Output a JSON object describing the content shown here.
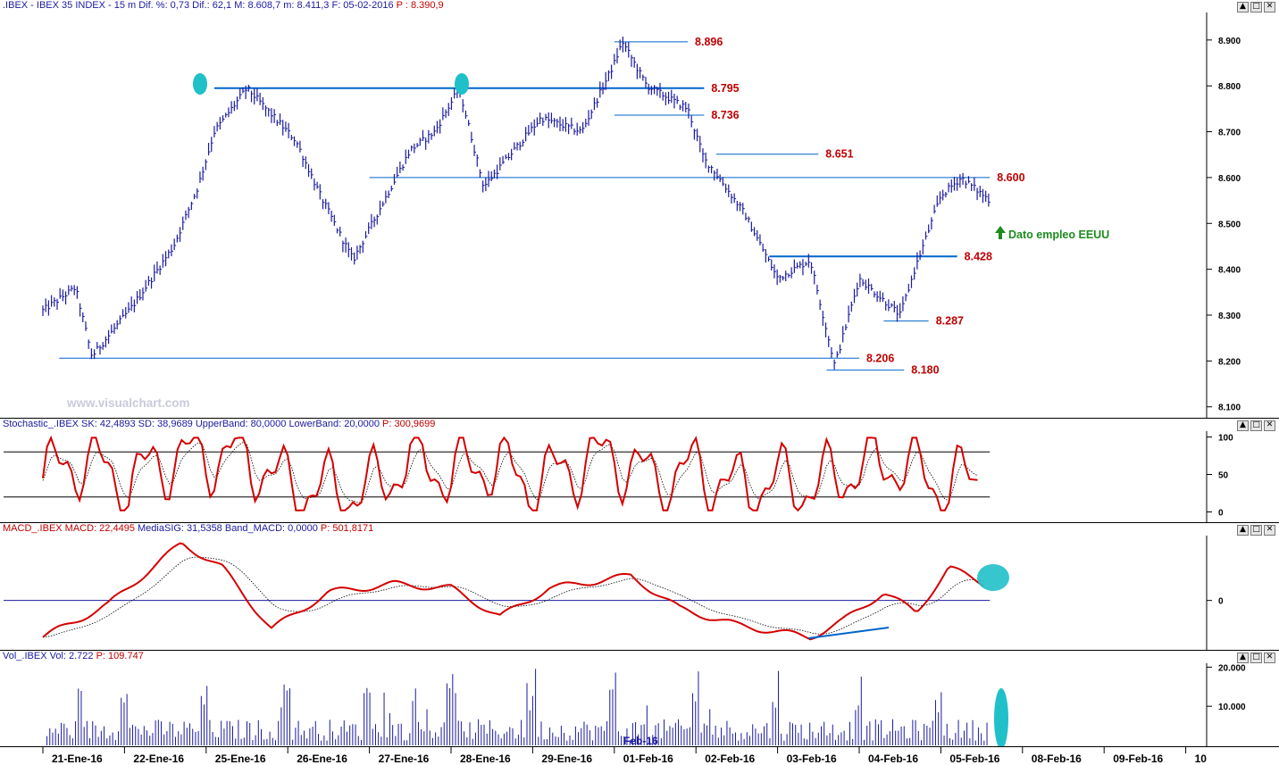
{
  "price_panel": {
    "title": {
      "symbol": ".IBEX - IBEX 35 INDEX -",
      "stats": "15 m  Dif. %: 0,73  Dif.: 62,1  M: 8.608,7  m: 8.411,3  F: 05-02-2016",
      "last": "P : 8.390,9"
    },
    "watermark": "www.visualchart.com",
    "note": "Dato empleo EEUU"
  },
  "stoch_panel": {
    "title": {
      "label": "Stochastic_.IBEX SK: 42,4893  SD: 38,9689  UpperBand: 80,0000  LowerBand: 20,0000",
      "last": "P: 300,9699"
    }
  },
  "macd_panel": {
    "title": {
      "label_main": "MACD_.IBEX MACD: 22,4495",
      "label_rest": "MediaSIG: 31,5358  Band_MACD: 0,0000",
      "last": "P: 501,8171"
    }
  },
  "vol_panel": {
    "title": {
      "label": "Vol_.IBEX Vol: 2.722",
      "last": "P: 109.747"
    },
    "inside_date": "Feb-16"
  },
  "window_buttons": [
    "▲",
    "□",
    "✕"
  ],
  "colors": {
    "price": "#1a1aa0",
    "level_line": "#0066cc",
    "level_label": "#c00000",
    "stoch": "#d40000",
    "macd": "#d40000",
    "signal": "#000000",
    "highlight": "#20c0c8",
    "volume": "#1a1aa0",
    "note": "#1f8a1f"
  },
  "chart_data": [
    {
      "type": "line",
      "name": "price",
      "ylim": [
        8080,
        8960
      ],
      "yticks": [
        8100,
        8200,
        8300,
        8400,
        8500,
        8600,
        8700,
        8800,
        8900
      ],
      "ytick_labels": [
        "8.100",
        "8.200",
        "8.300",
        "8.400",
        "8.500",
        "8.600",
        "8.700",
        "8.800",
        "8.900"
      ],
      "x_categories": [
        "21-Ene-16",
        "22-Ene-16",
        "25-Ene-16",
        "26-Ene-16",
        "27-Ene-16",
        "28-Ene-16",
        "29-Ene-16",
        "01-Feb-16",
        "02-Feb-16",
        "03-Feb-16",
        "04-Feb-16",
        "05-Feb-16",
        "08-Feb-16",
        "09-Feb-16",
        "10"
      ],
      "x_range": [
        0,
        14.5
      ],
      "series": [
        {
          "x": [
            0,
            0.4,
            0.6,
            1.1,
            1.6,
            1.9,
            2.1,
            2.5,
            3.1,
            3.4,
            3.8,
            4.5,
            4.8,
            5.1,
            5.4,
            6.1,
            6.6,
            7.0,
            7.1,
            7.4,
            7.9,
            8.1,
            8.2,
            8.6,
            9.0,
            9.4,
            9.7,
            10.0,
            10.5,
            10.7,
            11.0,
            11.25,
            11.6
          ],
          "y": [
            8310,
            8360,
            8210,
            8320,
            8450,
            8580,
            8700,
            8795,
            8680,
            8560,
            8420,
            8660,
            8700,
            8795,
            8580,
            8730,
            8700,
            8850,
            8896,
            8800,
            8750,
            8640,
            8620,
            8520,
            8380,
            8420,
            8190,
            8380,
            8300,
            8410,
            8560,
            8600,
            8550
          ]
        }
      ],
      "levels": [
        {
          "value": 8896,
          "label": "8.896",
          "x_from": 7.0,
          "x_to": 7.9
        },
        {
          "value": 8795,
          "label": "8.795",
          "x_from": 2.1,
          "x_to": 8.1
        },
        {
          "value": 8736,
          "label": "8.736",
          "x_from": 7.0,
          "x_to": 8.1
        },
        {
          "value": 8651,
          "label": "8.651",
          "x_from": 8.25,
          "x_to": 9.5
        },
        {
          "value": 8600,
          "label": "8.600",
          "x_from": 4.0,
          "x_to": 11.6
        },
        {
          "value": 8428,
          "label": "8.428",
          "x_from": 8.9,
          "x_to": 11.2
        },
        {
          "value": 8287,
          "label": "8.287",
          "x_from": 10.3,
          "x_to": 10.85
        },
        {
          "value": 8206,
          "label": "8.206",
          "x_from": 0.2,
          "x_to": 10.0
        },
        {
          "value": 8180,
          "label": "8.180",
          "x_from": 9.6,
          "x_to": 10.55
        }
      ]
    },
    {
      "type": "line",
      "name": "stochastic",
      "ylim": [
        -3,
        103
      ],
      "yticks": [
        0,
        50,
        100
      ],
      "ytick_labels": [
        "0",
        "50",
        "100"
      ],
      "bands": [
        80,
        20
      ],
      "series": [
        {
          "x": [
            0,
            0.5,
            1.0,
            1.5,
            2.0,
            2.5,
            3.0,
            3.5,
            4.0,
            4.5,
            5.0,
            5.5,
            6.0,
            6.5,
            7.0,
            7.5,
            8.0,
            8.5,
            9.0,
            9.5,
            10.0,
            10.5,
            11.0,
            11.5
          ],
          "y": [
            40,
            90,
            20,
            85,
            95,
            95,
            20,
            10,
            10,
            90,
            50,
            80,
            20,
            70,
            95,
            30,
            60,
            15,
            30,
            20,
            70,
            80,
            20,
            42
          ]
        }
      ]
    },
    {
      "type": "line",
      "name": "macd",
      "ylim": [
        -55,
        75
      ],
      "yticks": [
        0
      ],
      "ytick_labels": [
        "0"
      ],
      "band": 0,
      "series": [
        {
          "x": [
            0,
            0.8,
            1.7,
            2.2,
            2.8,
            3.5,
            4.3,
            5.0,
            5.6,
            6.2,
            7.2,
            7.8,
            8.5,
            9.4,
            9.8,
            10.3,
            10.7,
            11.1,
            11.55
          ],
          "y": [
            -45,
            -5,
            70,
            40,
            -35,
            10,
            20,
            15,
            -20,
            15,
            30,
            -10,
            -30,
            -45,
            -25,
            10,
            -15,
            40,
            20
          ]
        }
      ]
    },
    {
      "type": "bar",
      "name": "volume",
      "ylim": [
        0,
        21000
      ],
      "yticks": [
        10000,
        20000
      ],
      "ytick_labels": [
        "10.000",
        "20.000"
      ]
    }
  ]
}
